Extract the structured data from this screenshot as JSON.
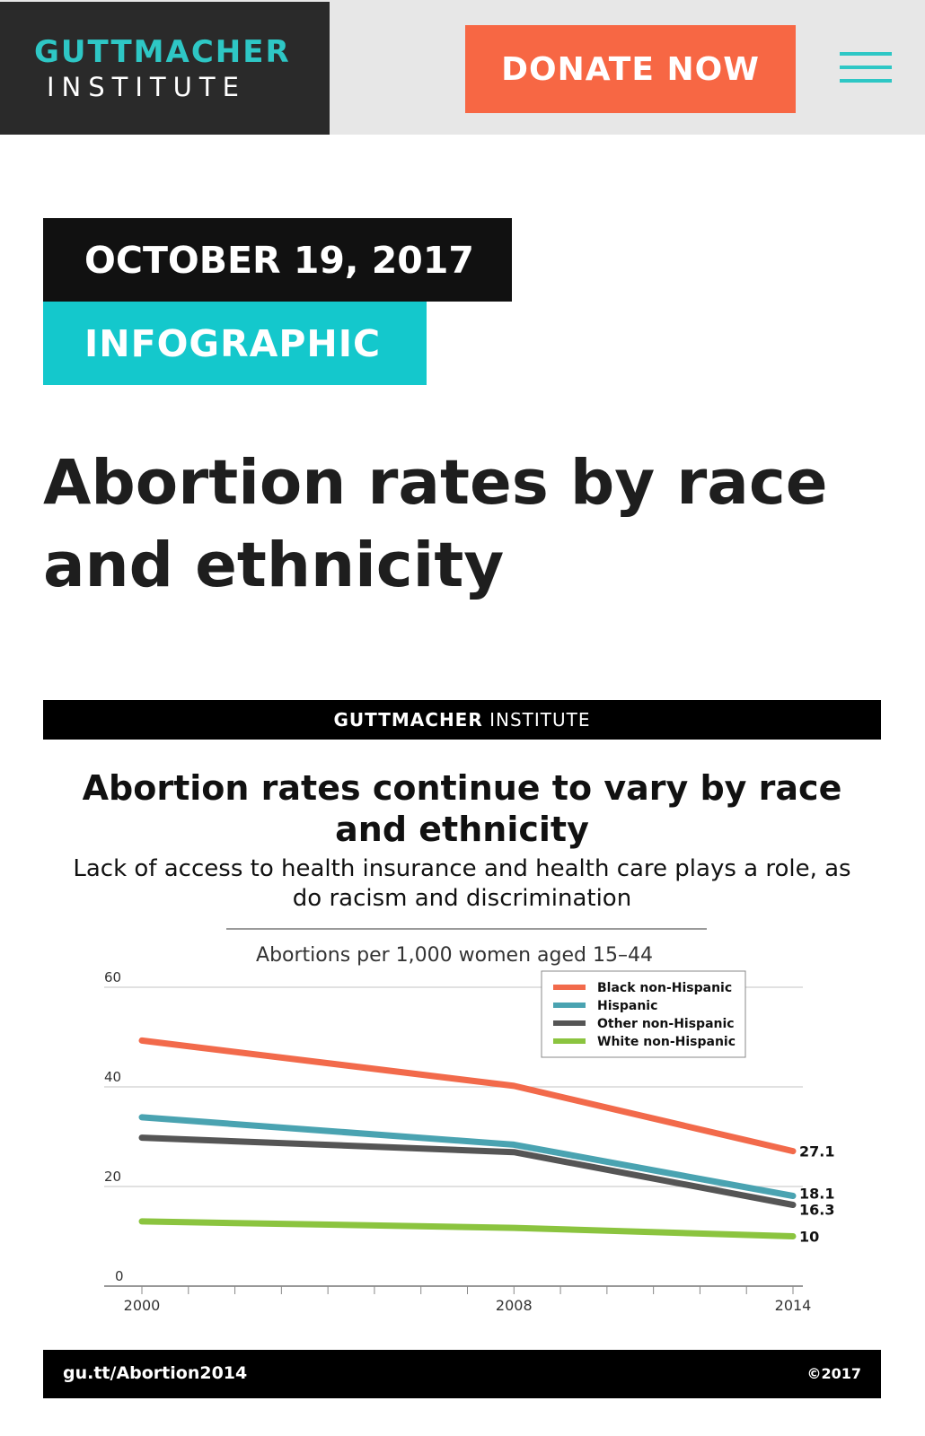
{
  "header": {
    "logo_top": "GUTTMACHER",
    "logo_bottom": "INSTITUTE",
    "donate_label": "DONATE NOW",
    "menu_icon": "hamburger-menu-icon",
    "colors": {
      "logo_bg": "#2a2a2a",
      "accent": "#2ec7c5",
      "donate_bg": "#f76744",
      "bar_bg": "#e7e7e7"
    }
  },
  "article": {
    "date": "OCTOBER 19, 2017",
    "type": "INFOGRAPHIC",
    "title": "Abortion rates by race and ethnicity"
  },
  "infographic": {
    "brand_bold": "GUTTMACHER",
    "brand_rest": "INSTITUTE",
    "footer_link": "gu.tt/Abortion2014",
    "footer_copyright": "©2017"
  },
  "chart_data": {
    "type": "line",
    "title": "Abortion rates continue to vary by race and ethnicity",
    "subtitle": "Lack of access to health insurance and health care plays a role, as do racism and discrimination",
    "ylabel": "Abortions per 1,000 women aged 15–44",
    "xlabel": "",
    "x_min": 2000,
    "x_max": 2014,
    "ylim": [
      0,
      60
    ],
    "y_ticks": [
      0,
      20,
      40,
      60
    ],
    "x_ticks": [
      2000,
      2008,
      2014
    ],
    "grid": true,
    "legend_position": "top-right",
    "series": [
      {
        "name": "Black non-Hispanic",
        "color": "#f26a4b",
        "x": [
          2000,
          2008,
          2014
        ],
        "y": [
          49.3,
          40.2,
          27.1
        ],
        "end_label": "27.1"
      },
      {
        "name": "Hispanic",
        "color": "#4aa3b1",
        "x": [
          2000,
          2008,
          2014
        ],
        "y": [
          33.9,
          28.4,
          18.1
        ],
        "end_label": "18.1"
      },
      {
        "name": "Other non-Hispanic",
        "color": "#555555",
        "x": [
          2000,
          2008,
          2014
        ],
        "y": [
          29.8,
          26.9,
          16.3
        ],
        "end_label": "16.3"
      },
      {
        "name": "White non-Hispanic",
        "color": "#8bc43f",
        "x": [
          2000,
          2008,
          2014
        ],
        "y": [
          13.0,
          11.7,
          10.0
        ],
        "end_label": "10"
      }
    ]
  }
}
